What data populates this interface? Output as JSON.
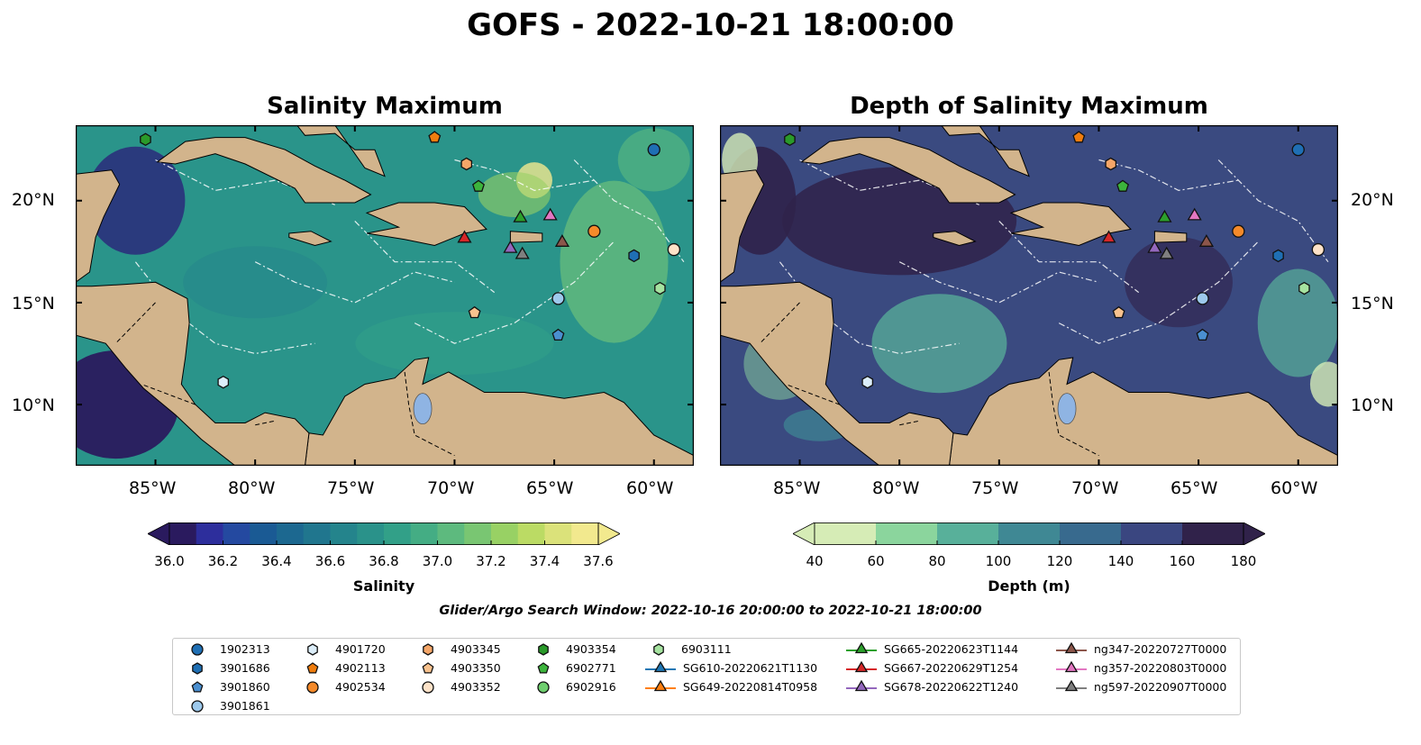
{
  "title": "GOFS - 2022-10-21 18:00:00",
  "panels": [
    {
      "title": "Salinity Maximum",
      "colorbar_label": "Salinity",
      "colorbar_ticks": [
        "36.0",
        "36.2",
        "36.4",
        "36.6",
        "36.8",
        "37.0",
        "37.2",
        "37.4",
        "37.6"
      ],
      "colorbar_colors": [
        "#2a1a5e",
        "#2d2e9c",
        "#2449a0",
        "#1a5a94",
        "#1c6890",
        "#20768e",
        "#24848c",
        "#2a928a",
        "#32a088",
        "#44ad84",
        "#5dba7e",
        "#79c672",
        "#98d164",
        "#bbdb64",
        "#dbe27a",
        "#f2e98e"
      ]
    },
    {
      "title": "Depth of Salinity Maximum",
      "colorbar_label": "Depth (m)",
      "colorbar_ticks": [
        "40",
        "60",
        "80",
        "100",
        "120",
        "140",
        "160",
        "180"
      ],
      "colorbar_colors": [
        "#d6ecb6",
        "#8bd59d",
        "#58b09a",
        "#3f8894",
        "#386a8e",
        "#3a4680",
        "#30224a"
      ]
    }
  ],
  "axes": {
    "x_ticks": [
      "85°W",
      "80°W",
      "75°W",
      "70°W",
      "65°W",
      "60°W"
    ],
    "y_ticks": [
      "20°N",
      "15°N",
      "10°N"
    ]
  },
  "map_colors": {
    "land": "#d2b48c",
    "salinity_ocean": "#2a948a",
    "depth_ocean": "#3a4a80"
  },
  "search_window": "Glider/Argo Search Window: 2022-10-16 20:00:00 to 2022-10-21 18:00:00",
  "legend": {
    "argo": [
      {
        "label": "1902313",
        "color": "#1f6fb4",
        "marker": "circle"
      },
      {
        "label": "3901686",
        "color": "#1f6fb4",
        "marker": "hexagon"
      },
      {
        "label": "3901860",
        "color": "#4a8fd0",
        "marker": "pentagon"
      },
      {
        "label": "3901861",
        "color": "#9dc9ec",
        "marker": "circle"
      },
      {
        "label": "4901720",
        "color": "#dceefa",
        "marker": "hexagon"
      },
      {
        "label": "4902113",
        "color": "#f07d0e",
        "marker": "pentagon"
      },
      {
        "label": "4902534",
        "color": "#f58a2a",
        "marker": "circle"
      },
      {
        "label": "4903345",
        "color": "#f5a668",
        "marker": "hexagon"
      },
      {
        "label": "4903350",
        "color": "#f8c28e",
        "marker": "pentagon"
      },
      {
        "label": "4903352",
        "color": "#fde2c8",
        "marker": "circle"
      },
      {
        "label": "4903354",
        "color": "#2a9a2a",
        "marker": "hexagon"
      },
      {
        "label": "6902771",
        "color": "#3cb43c",
        "marker": "pentagon"
      },
      {
        "label": "6902916",
        "color": "#6fcf6f",
        "marker": "circle"
      },
      {
        "label": "6903111",
        "color": "#a6e3a0",
        "marker": "hexagon"
      }
    ],
    "gliders": [
      {
        "label": "SG610-20220621T1130",
        "color": "#1f77b4"
      },
      {
        "label": "SG649-20220814T0958",
        "color": "#ff7f0e"
      },
      {
        "label": "SG665-20220623T1144",
        "color": "#2ca02c"
      },
      {
        "label": "SG667-20220629T1254",
        "color": "#d62728"
      },
      {
        "label": "SG678-20220622T1240",
        "color": "#9467bd"
      },
      {
        "label": "ng347-20220727T0000",
        "color": "#8c564b"
      },
      {
        "label": "ng357-20220803T0000",
        "color": "#e377c2"
      },
      {
        "label": "ng597-20220907T0000",
        "color": "#7f7f7f"
      }
    ]
  }
}
